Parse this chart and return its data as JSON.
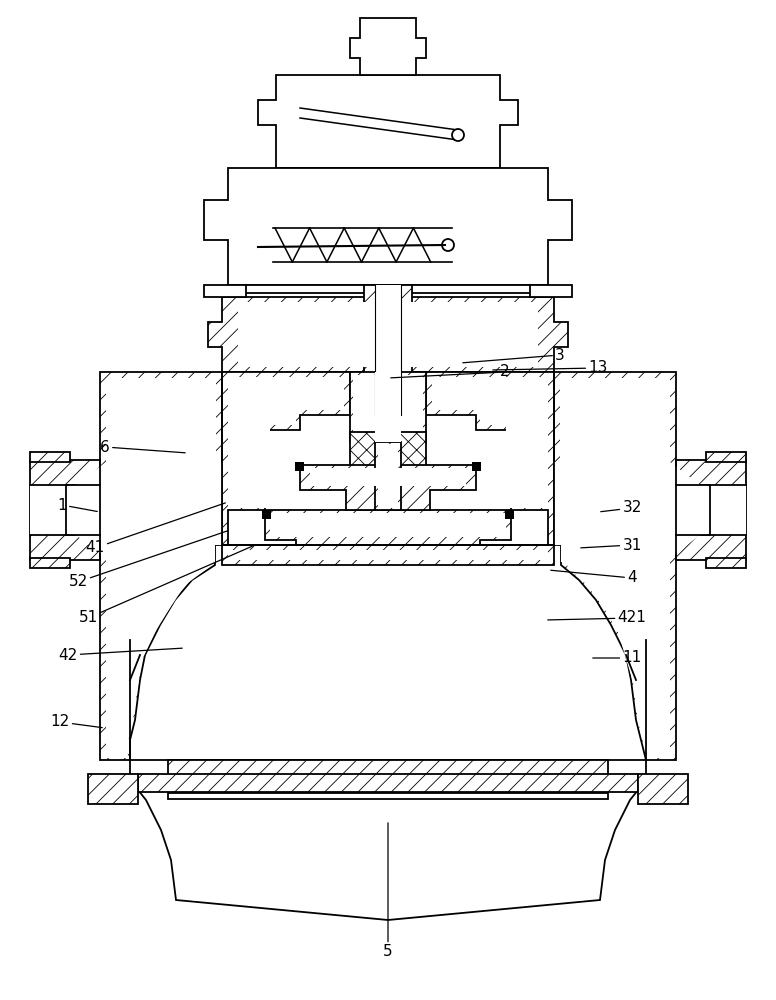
{
  "bg_color": "#ffffff",
  "line_color": "#000000",
  "lw": 1.3,
  "hatch_lw": 0.5,
  "figsize": [
    7.76,
    10.0
  ],
  "dpi": 100,
  "labels": [
    [
      "1",
      62,
      505
    ],
    [
      "6",
      105,
      447
    ],
    [
      "2",
      505,
      372
    ],
    [
      "3",
      560,
      355
    ],
    [
      "13",
      598,
      368
    ],
    [
      "32",
      632,
      508
    ],
    [
      "31",
      632,
      545
    ],
    [
      "4",
      632,
      578
    ],
    [
      "421",
      632,
      618
    ],
    [
      "11",
      632,
      658
    ],
    [
      "41",
      95,
      548
    ],
    [
      "52",
      78,
      582
    ],
    [
      "51",
      88,
      618
    ],
    [
      "42",
      68,
      655
    ],
    [
      "12",
      60,
      722
    ],
    [
      "5",
      388,
      952
    ]
  ],
  "label_tips": [
    [
      "1",
      100,
      512
    ],
    [
      "6",
      188,
      453
    ],
    [
      "2",
      388,
      378
    ],
    [
      "3",
      460,
      363
    ],
    [
      "13",
      490,
      370
    ],
    [
      "32",
      598,
      512
    ],
    [
      "31",
      578,
      548
    ],
    [
      "4",
      548,
      570
    ],
    [
      "421",
      545,
      620
    ],
    [
      "11",
      590,
      658
    ],
    [
      "41",
      228,
      502
    ],
    [
      "52",
      230,
      530
    ],
    [
      "51",
      255,
      545
    ],
    [
      "42",
      185,
      648
    ],
    [
      "12",
      105,
      728
    ],
    [
      "5",
      388,
      820
    ]
  ]
}
